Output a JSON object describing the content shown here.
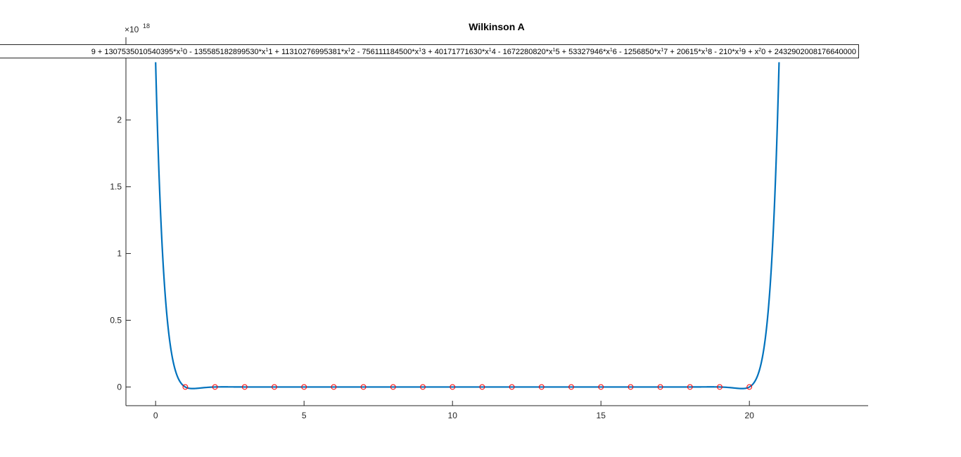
{
  "chart_data": {
    "type": "line",
    "title": "Wilkinson A",
    "xlabel": "",
    "ylabel": "",
    "xlim": [
      -1,
      24
    ],
    "ylim": [
      -1.4e+17,
      2.62e+18
    ],
    "x_ticks": [
      0,
      5,
      10,
      15,
      20
    ],
    "y_ticks": [
      0,
      0.5,
      1,
      1.5,
      2,
      2.5
    ],
    "y_exponent_base": "×10",
    "y_exponent_power": "18",
    "grid": false,
    "series": [
      {
        "name": "",
        "style": "line",
        "color": "#0072BD",
        "function": "product_(x-k)_k=1..20",
        "x_range": [
          0,
          21
        ],
        "values_description_only": false
      },
      {
        "name": "",
        "style": "markers-circle",
        "color": "#FF0000",
        "x": [
          1,
          2,
          3,
          4,
          5,
          6,
          7,
          8,
          9,
          10,
          11,
          12,
          13,
          14,
          15,
          16,
          17,
          18,
          19,
          20
        ],
        "y": [
          0,
          0,
          0,
          0,
          0,
          0,
          0,
          0,
          0,
          0,
          0,
          0,
          0,
          0,
          0,
          0,
          0,
          0,
          0,
          0
        ]
      }
    ],
    "legend": {
      "placement": "top",
      "parts": [
        {
          "t": "9"
        },
        {
          "t": " + 1307535010540395*x"
        },
        {
          "s": "1"
        },
        {
          "t": "0 - 135585182899530*x"
        },
        {
          "s": "1"
        },
        {
          "t": "1 + 11310276995381*x"
        },
        {
          "s": "1"
        },
        {
          "t": "2 - 756111184500*x"
        },
        {
          "s": "1"
        },
        {
          "t": "3 + 40171771630*x"
        },
        {
          "s": "1"
        },
        {
          "t": "4 - 1672280820*x"
        },
        {
          "s": "1"
        },
        {
          "t": "5 + 53327946*x"
        },
        {
          "s": "1"
        },
        {
          "t": "6 - 1256850*x"
        },
        {
          "s": "1"
        },
        {
          "t": "7 + 20615*x"
        },
        {
          "s": "1"
        },
        {
          "t": "8 - 210*x"
        },
        {
          "s": "1"
        },
        {
          "t": "9 + x"
        },
        {
          "s": "2"
        },
        {
          "t": "0 + 2432902008176640000"
        }
      ]
    }
  },
  "colors": {
    "curve": "#0072BD",
    "markers": "#FF0000",
    "axis": "#262626"
  }
}
